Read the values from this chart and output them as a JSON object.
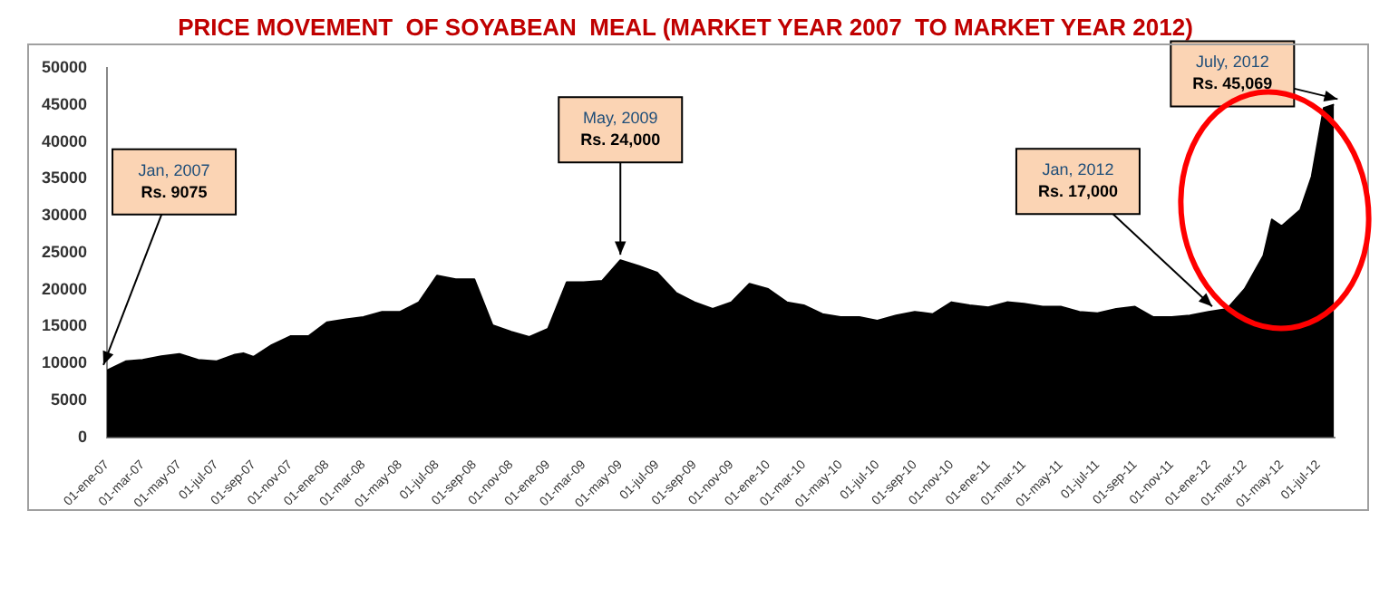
{
  "chart_data": {
    "type": "area",
    "title": "PRICE MOVEMENT  OF SOYABEAN  MEAL (MARKET YEAR 2007  TO MARKET YEAR 2012)",
    "x": [
      "2007-01-01",
      "2007-02-01",
      "2007-03-01",
      "2007-04-01",
      "2007-05-01",
      "2007-06-01",
      "2007-07-01",
      "2007-08-01",
      "2007-08-15",
      "2007-09-01",
      "2007-10-01",
      "2007-11-01",
      "2007-12-01",
      "2008-01-01",
      "2008-02-01",
      "2008-03-01",
      "2008-04-01",
      "2008-05-01",
      "2008-06-01",
      "2008-07-01",
      "2008-08-01",
      "2008-09-01",
      "2008-10-01",
      "2008-11-01",
      "2008-12-01",
      "2009-01-01",
      "2009-02-01",
      "2009-03-01",
      "2009-04-01",
      "2009-05-01",
      "2009-06-01",
      "2009-07-01",
      "2009-08-01",
      "2009-09-01",
      "2009-10-01",
      "2009-11-01",
      "2009-12-01",
      "2010-01-01",
      "2010-02-01",
      "2010-03-01",
      "2010-04-01",
      "2010-05-01",
      "2010-06-01",
      "2010-07-01",
      "2010-08-01",
      "2010-09-01",
      "2010-10-01",
      "2010-11-01",
      "2010-12-01",
      "2011-01-01",
      "2011-02-01",
      "2011-03-01",
      "2011-04-01",
      "2011-05-01",
      "2011-06-01",
      "2011-07-01",
      "2011-08-01",
      "2011-09-01",
      "2011-10-01",
      "2011-11-01",
      "2011-12-01",
      "2012-01-01",
      "2012-02-01",
      "2012-03-01",
      "2012-04-01",
      "2012-04-15",
      "2012-05-01",
      "2012-06-01",
      "2012-06-20",
      "2012-07-10",
      "2012-07-27"
    ],
    "series": [
      {
        "color": "#000000",
        "values": [
          9075,
          10300,
          10500,
          11000,
          11300,
          10500,
          10300,
          11200,
          11400,
          10900,
          12500,
          13700,
          13700,
          15600,
          16000,
          16300,
          17000,
          17000,
          18300,
          21900,
          21400,
          21400,
          15200,
          14300,
          13600,
          14700,
          21000,
          21000,
          21200,
          24000,
          23200,
          22300,
          19600,
          18300,
          17400,
          18300,
          20800,
          20100,
          18300,
          17900,
          16700,
          16300,
          16300,
          15800,
          16500,
          17000,
          16700,
          18300,
          17900,
          17600,
          18300,
          18100,
          17700,
          17700,
          17000,
          16800,
          17400,
          17700,
          16300,
          16300,
          16500,
          17000,
          17400,
          20100,
          24600,
          29500,
          28600,
          30800,
          35300,
          44600,
          45069
        ]
      }
    ],
    "xlim": [
      "2007-01-01",
      "2012-07-28"
    ],
    "xticks": [
      {
        "value": "2007-01-01",
        "label": "01-ene-07"
      },
      {
        "value": "2007-03-01",
        "label": "01-mar-07"
      },
      {
        "value": "2007-05-01",
        "label": "01-may-07"
      },
      {
        "value": "2007-07-01",
        "label": "01-jul-07"
      },
      {
        "value": "2007-09-01",
        "label": "01-sep-07"
      },
      {
        "value": "2007-11-01",
        "label": "01-nov-07"
      },
      {
        "value": "2008-01-01",
        "label": "01-ene-08"
      },
      {
        "value": "2008-03-01",
        "label": "01-mar-08"
      },
      {
        "value": "2008-05-01",
        "label": "01-may-08"
      },
      {
        "value": "2008-07-01",
        "label": "01-jul-08"
      },
      {
        "value": "2008-09-01",
        "label": "01-sep-08"
      },
      {
        "value": "2008-11-01",
        "label": "01-nov-08"
      },
      {
        "value": "2009-01-01",
        "label": "01-ene-09"
      },
      {
        "value": "2009-03-01",
        "label": "01-mar-09"
      },
      {
        "value": "2009-05-01",
        "label": "01-may-09"
      },
      {
        "value": "2009-07-01",
        "label": "01-jul-09"
      },
      {
        "value": "2009-09-01",
        "label": "01-sep-09"
      },
      {
        "value": "2009-11-01",
        "label": "01-nov-09"
      },
      {
        "value": "2010-01-01",
        "label": "01-ene-10"
      },
      {
        "value": "2010-03-01",
        "label": "01-mar-10"
      },
      {
        "value": "2010-05-01",
        "label": "01-may-10"
      },
      {
        "value": "2010-07-01",
        "label": "01-jul-10"
      },
      {
        "value": "2010-09-01",
        "label": "01-sep-10"
      },
      {
        "value": "2010-11-01",
        "label": "01-nov-10"
      },
      {
        "value": "2011-01-01",
        "label": "01-ene-11"
      },
      {
        "value": "2011-03-01",
        "label": "01-mar-11"
      },
      {
        "value": "2011-05-01",
        "label": "01-may-11"
      },
      {
        "value": "2011-07-01",
        "label": "01-jul-11"
      },
      {
        "value": "2011-09-01",
        "label": "01-sep-11"
      },
      {
        "value": "2011-11-01",
        "label": "01-nov-11"
      },
      {
        "value": "2012-01-01",
        "label": "01-ene-12"
      },
      {
        "value": "2012-03-01",
        "label": "01-mar-12"
      },
      {
        "value": "2012-05-01",
        "label": "01-may-12"
      },
      {
        "value": "2012-07-01",
        "label": "01-jul-12"
      }
    ],
    "ylim": [
      0,
      50000
    ],
    "yticks": [
      0,
      5000,
      10000,
      15000,
      20000,
      25000,
      30000,
      35000,
      40000,
      45000,
      50000
    ],
    "grid": false,
    "legend": false,
    "annotations": [
      {
        "text": "Jan, 2007\nRs. 9075",
        "x": "2007-01-01",
        "y": 9075
      },
      {
        "text": "May, 2009\nRs. 24,000",
        "x": "2009-05-01",
        "y": 24000
      },
      {
        "text": "Jan, 2012\nRs. 17,000",
        "x": "2012-01-01",
        "y": 17000
      },
      {
        "text": "July, 2012\nRs. 45,069",
        "x": "2012-07-27",
        "y": 45069
      }
    ]
  }
}
